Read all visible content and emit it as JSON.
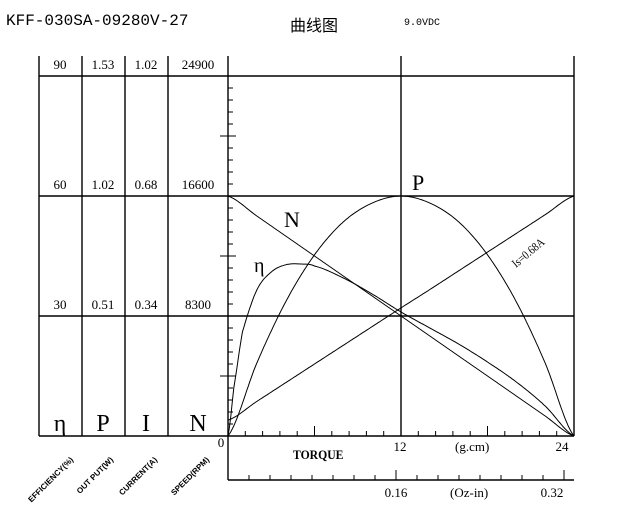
{
  "header": {
    "model": "KFF-030SA-09280V-27",
    "chart_title_cn": "曲线图",
    "voltage": "9.0VDC"
  },
  "scale_table": {
    "columns": [
      {
        "symbol": "η",
        "label": "EFFICIENCY(%)",
        "values": [
          "90",
          "60",
          "30"
        ]
      },
      {
        "symbol": "P",
        "label": "OUT PUT(W)",
        "values": [
          "1.53",
          "1.02",
          "0.51"
        ]
      },
      {
        "symbol": "I",
        "label": "CURRENT(A)",
        "values": [
          "1.02",
          "0.68",
          "0.34"
        ]
      },
      {
        "symbol": "N",
        "label": "SPEED(RPM)",
        "values": [
          "24900",
          "16600",
          "8300"
        ]
      }
    ]
  },
  "axes": {
    "torque_label": "TORQUE",
    "gcm_unit": "(g.cm)",
    "ozin_unit": "(Oz-in)",
    "gcm_ticks": [
      "0",
      "12",
      "24"
    ],
    "ozin_ticks": [
      "0.16",
      "0.32"
    ]
  },
  "curve_labels": {
    "power": "P",
    "speed": "N",
    "efficiency": "η",
    "stall_current": "Is=0.68A"
  },
  "chart_data": {
    "type": "line",
    "title": "KFF-030SA-09280V-27 曲线图 9.0VDC",
    "xlabel": "TORQUE (g.cm)",
    "x_secondary_label": "(Oz-in)",
    "xlim": [
      0,
      24
    ],
    "x_secondary_ticks": [
      0.16,
      0.32
    ],
    "x": [
      0,
      2,
      4,
      6,
      8,
      10,
      12,
      14,
      16,
      18,
      20,
      22,
      24
    ],
    "series": [
      {
        "name": "N - SPEED(RPM)",
        "unit": "rpm",
        "ylim": [
          0,
          24900
        ],
        "values": [
          16600,
          15217,
          13833,
          12450,
          11067,
          9683,
          8300,
          6917,
          5533,
          4150,
          2767,
          1383,
          0
        ]
      },
      {
        "name": "I - CURRENT(A)",
        "unit": "A",
        "ylim": [
          0,
          1.02
        ],
        "values": [
          0.045,
          0.098,
          0.151,
          0.204,
          0.257,
          0.31,
          0.363,
          0.415,
          0.468,
          0.521,
          0.574,
          0.627,
          0.68
        ]
      },
      {
        "name": "P - OUT PUT(W)",
        "unit": "W",
        "ylim": [
          0,
          1.53
        ],
        "values": [
          0,
          0.31,
          0.57,
          0.77,
          0.91,
          0.99,
          1.02,
          0.99,
          0.91,
          0.77,
          0.57,
          0.31,
          0
        ]
      },
      {
        "name": "η - EFFICIENCY(%)",
        "unit": "%",
        "ylim": [
          0,
          90
        ],
        "values": [
          0,
          38,
          43,
          42.5,
          39.5,
          35.5,
          31,
          27,
          23,
          18.5,
          13.5,
          7.5,
          0
        ]
      }
    ],
    "annotations": [
      "Is=0.68A",
      "P",
      "N",
      "η"
    ],
    "grid": true,
    "legend_position": "left scale table"
  }
}
